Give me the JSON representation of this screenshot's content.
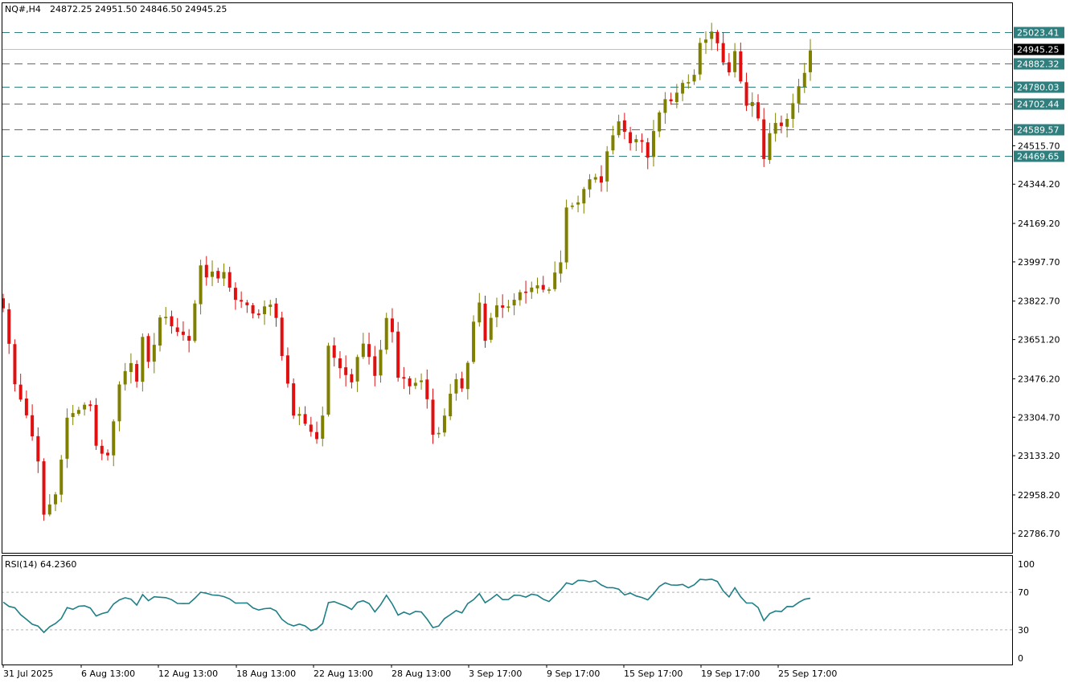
{
  "header": {
    "symbol": "NQ#,H4",
    "ohlc": "24872.25 24951.50 24846.50 24945.25"
  },
  "chart_data": {
    "type": "candlestick",
    "price_axis": {
      "range": [
        22700,
        25155
      ],
      "ticks": [
        "25023.41",
        "24945.25",
        "24882.32",
        "24780.03",
        "24702.44",
        "24589.57",
        "24515.70",
        "24469.65",
        "24344.20",
        "24169.20",
        "23997.70",
        "23822.70",
        "23651.20",
        "23476.20",
        "23304.70",
        "23133.20",
        "22958.20",
        "22786.70"
      ]
    },
    "levels": [
      {
        "label": "25023.41",
        "value": 25023.41
      },
      {
        "label": "24882.32",
        "value": 24882.32
      },
      {
        "label": "24780.03",
        "value": 24780.03
      },
      {
        "label": "24702.44",
        "value": 24702.44
      },
      {
        "label": "24589.57",
        "value": 24589.57
      },
      {
        "label": "24469.65",
        "value": 24469.65
      }
    ],
    "current_price": {
      "label": "24945.25",
      "value": 24945.25
    },
    "time_labels": [
      "31 Jul 2025",
      "6 Aug 13:00",
      "12 Aug 13:00",
      "18 Aug 13:00",
      "22 Aug 13:00",
      "28 Aug 13:00",
      "3 Sep 17:00",
      "9 Sep 17:00",
      "15 Sep 17:00",
      "19 Sep 17:00",
      "25 Sep 17:00"
    ],
    "close_path": [
      [
        0,
        23800
      ],
      [
        2,
        23450
      ],
      [
        4,
        23320
      ],
      [
        6,
        23100
      ],
      [
        7,
        22870
      ],
      [
        9,
        22960
      ],
      [
        11,
        23300
      ],
      [
        13,
        23340
      ],
      [
        15,
        23360
      ],
      [
        16,
        23180
      ],
      [
        18,
        23120
      ],
      [
        20,
        23440
      ],
      [
        22,
        23560
      ],
      [
        23,
        23460
      ],
      [
        24,
        23650
      ],
      [
        25,
        23560
      ],
      [
        26,
        23620
      ],
      [
        27,
        23760
      ],
      [
        28,
        23740
      ],
      [
        29,
        23720
      ],
      [
        30,
        23690
      ],
      [
        32,
        23650
      ],
      [
        34,
        23980
      ],
      [
        35,
        23940
      ],
      [
        36,
        23950
      ],
      [
        37,
        23910
      ],
      [
        38,
        23960
      ],
      [
        40,
        23820
      ],
      [
        42,
        23800
      ],
      [
        44,
        23760
      ],
      [
        45,
        23790
      ],
      [
        46,
        23800
      ],
      [
        47,
        23760
      ],
      [
        48,
        23580
      ],
      [
        50,
        23300
      ],
      [
        51,
        23320
      ],
      [
        52,
        23280
      ],
      [
        53,
        23240
      ],
      [
        54,
        23220
      ],
      [
        55,
        23300
      ],
      [
        56,
        23630
      ],
      [
        58,
        23520
      ],
      [
        60,
        23460
      ],
      [
        61,
        23580
      ],
      [
        62,
        23620
      ],
      [
        63,
        23560
      ],
      [
        64,
        23500
      ],
      [
        65,
        23600
      ],
      [
        66,
        23760
      ],
      [
        67,
        23670
      ],
      [
        68,
        23480
      ],
      [
        69,
        23480
      ],
      [
        70,
        23440
      ],
      [
        71,
        23460
      ],
      [
        72,
        23470
      ],
      [
        73,
        23400
      ],
      [
        74,
        23220
      ],
      [
        75,
        23240
      ],
      [
        76,
        23320
      ],
      [
        77,
        23400
      ],
      [
        78,
        23460
      ],
      [
        79,
        23440
      ],
      [
        80,
        23560
      ],
      [
        81,
        23730
      ],
      [
        82,
        23820
      ],
      [
        83,
        23640
      ],
      [
        84,
        23740
      ],
      [
        85,
        23800
      ],
      [
        86,
        23790
      ],
      [
        87,
        23810
      ],
      [
        88,
        23830
      ],
      [
        89,
        23860
      ],
      [
        90,
        23870
      ],
      [
        91,
        23890
      ],
      [
        92,
        23880
      ],
      [
        93,
        23870
      ],
      [
        94,
        23870
      ],
      [
        95,
        23940
      ],
      [
        96,
        24000
      ],
      [
        97,
        24230
      ],
      [
        98,
        24250
      ],
      [
        99,
        24270
      ],
      [
        100,
        24320
      ],
      [
        101,
        24380
      ],
      [
        102,
        24380
      ],
      [
        103,
        24340
      ],
      [
        104,
        24500
      ],
      [
        105,
        24550
      ],
      [
        106,
        24620
      ],
      [
        107,
        24570
      ],
      [
        108,
        24540
      ],
      [
        109,
        24540
      ],
      [
        110,
        24520
      ],
      [
        111,
        24460
      ],
      [
        112,
        24580
      ],
      [
        113,
        24660
      ],
      [
        114,
        24720
      ],
      [
        115,
        24700
      ],
      [
        116,
        24740
      ],
      [
        117,
        24810
      ],
      [
        118,
        24790
      ],
      [
        119,
        24820
      ],
      [
        120,
        24980
      ],
      [
        121,
        25000
      ],
      [
        122,
        25010
      ],
      [
        123,
        24970
      ],
      [
        124,
        24880
      ],
      [
        125,
        24840
      ],
      [
        126,
        24930
      ],
      [
        127,
        24800
      ],
      [
        128,
        24700
      ],
      [
        129,
        24720
      ],
      [
        130,
        24650
      ],
      [
        131,
        24460
      ],
      [
        132,
        24560
      ],
      [
        133,
        24620
      ],
      [
        134,
        24610
      ],
      [
        135,
        24650
      ],
      [
        136,
        24720
      ],
      [
        137,
        24780
      ],
      [
        138,
        24840
      ],
      [
        139,
        24945.25
      ]
    ],
    "rsi": {
      "label": "RSI(14) 64.2360",
      "levels": [
        70,
        30
      ],
      "scale_labels": [
        "100",
        "70",
        "30",
        "0"
      ],
      "values": [
        [
          0,
          61
        ],
        [
          2,
          52
        ],
        [
          4,
          40
        ],
        [
          6,
          33
        ],
        [
          7,
          29
        ],
        [
          9,
          35
        ],
        [
          11,
          52
        ],
        [
          13,
          55
        ],
        [
          15,
          53
        ],
        [
          16,
          44
        ],
        [
          18,
          48
        ],
        [
          20,
          63
        ],
        [
          22,
          64
        ],
        [
          23,
          58
        ],
        [
          24,
          67
        ],
        [
          25,
          60
        ],
        [
          26,
          64
        ],
        [
          27,
          66
        ],
        [
          28,
          65
        ],
        [
          29,
          63
        ],
        [
          30,
          60
        ],
        [
          32,
          58
        ],
        [
          34,
          70
        ],
        [
          35,
          68
        ],
        [
          36,
          68
        ],
        [
          37,
          65
        ],
        [
          38,
          67
        ],
        [
          40,
          59
        ],
        [
          42,
          58
        ],
        [
          44,
          52
        ],
        [
          45,
          54
        ],
        [
          46,
          55
        ],
        [
          47,
          52
        ],
        [
          48,
          41
        ],
        [
          50,
          33
        ],
        [
          51,
          35
        ],
        [
          52,
          33
        ],
        [
          53,
          31
        ],
        [
          54,
          30
        ],
        [
          55,
          35
        ],
        [
          56,
          61
        ],
        [
          58,
          57
        ],
        [
          60,
          52
        ],
        [
          61,
          60
        ],
        [
          62,
          62
        ],
        [
          63,
          57
        ],
        [
          64,
          51
        ],
        [
          65,
          58
        ],
        [
          66,
          65
        ],
        [
          67,
          58
        ],
        [
          68,
          47
        ],
        [
          69,
          47
        ],
        [
          70,
          46
        ],
        [
          71,
          48
        ],
        [
          72,
          49
        ],
        [
          73,
          43
        ],
        [
          74,
          31
        ],
        [
          75,
          35
        ],
        [
          76,
          43
        ],
        [
          77,
          48
        ],
        [
          78,
          52
        ],
        [
          79,
          50
        ],
        [
          80,
          58
        ],
        [
          81,
          64
        ],
        [
          82,
          68
        ],
        [
          83,
          58
        ],
        [
          84,
          63
        ],
        [
          85,
          66
        ],
        [
          86,
          63
        ],
        [
          87,
          64
        ],
        [
          88,
          65
        ],
        [
          89,
          65
        ],
        [
          90,
          63
        ],
        [
          91,
          66
        ],
        [
          92,
          65
        ],
        [
          93,
          63
        ],
        [
          94,
          62
        ],
        [
          95,
          68
        ],
        [
          96,
          72
        ],
        [
          97,
          80
        ],
        [
          98,
          80
        ],
        [
          99,
          81
        ],
        [
          100,
          82
        ],
        [
          101,
          83
        ],
        [
          102,
          82
        ],
        [
          103,
          79
        ],
        [
          104,
          74
        ],
        [
          105,
          74
        ],
        [
          106,
          73
        ],
        [
          107,
          68
        ],
        [
          108,
          68
        ],
        [
          109,
          68
        ],
        [
          110,
          66
        ],
        [
          111,
          61
        ],
        [
          112,
          70
        ],
        [
          113,
          76
        ],
        [
          114,
          78
        ],
        [
          115,
          76
        ],
        [
          116,
          77
        ],
        [
          117,
          79
        ],
        [
          118,
          76
        ],
        [
          119,
          76
        ],
        [
          120,
          83
        ],
        [
          121,
          85
        ],
        [
          122,
          85
        ],
        [
          123,
          80
        ],
        [
          124,
          70
        ],
        [
          125,
          66
        ],
        [
          126,
          74
        ],
        [
          127,
          64
        ],
        [
          128,
          58
        ],
        [
          129,
          58
        ],
        [
          130,
          54
        ],
        [
          131,
          40
        ],
        [
          132,
          46
        ],
        [
          133,
          52
        ],
        [
          134,
          51
        ],
        [
          135,
          53
        ],
        [
          136,
          56
        ],
        [
          137,
          59
        ],
        [
          138,
          62
        ],
        [
          139,
          64
        ]
      ]
    },
    "colors": {
      "up": "#808000",
      "down": "#e01010",
      "rsi_line": "#1f7f86",
      "level_line": "#2f8080",
      "label_bg": "#2f7f7f",
      "current_bg": "#000000",
      "grid": "#000000"
    }
  }
}
